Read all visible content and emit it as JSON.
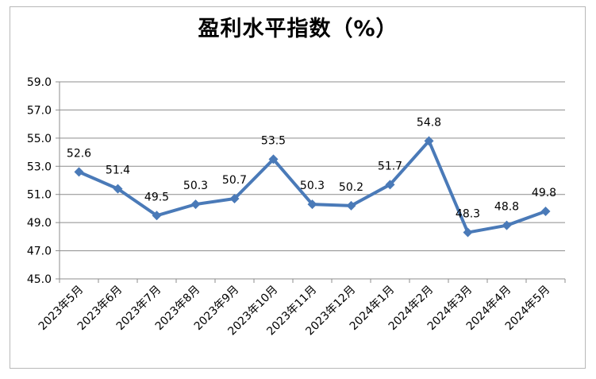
{
  "chart_data": {
    "type": "line",
    "title": "盈利水平指数（%）",
    "xlabel": "",
    "ylabel": "",
    "categories": [
      "2023年5月",
      "2023年6月",
      "2023年7月",
      "2023年8月",
      "2023年9月",
      "2023年10月",
      "2023年11月",
      "2023年12月",
      "2024年1月",
      "2024年2月",
      "2024年3月",
      "2024年4月",
      "2024年5月"
    ],
    "series": [
      {
        "values": [
          52.6,
          51.4,
          49.5,
          50.3,
          50.7,
          53.5,
          50.3,
          50.2,
          51.7,
          54.8,
          48.3,
          48.8,
          49.8
        ]
      }
    ],
    "data_labels": [
      "52.6",
      "51.4",
      "49.5",
      "50.3",
      "50.7",
      "53.5",
      "50.3",
      "50.2",
      "51.7",
      "54.8",
      "48.3",
      "48.8",
      "49.8"
    ],
    "ylim": [
      45.0,
      59.0
    ],
    "yticks": [
      "45.0",
      "47.0",
      "49.0",
      "51.0",
      "53.0",
      "55.0",
      "57.0",
      "59.0"
    ],
    "grid": true,
    "legend": "none",
    "line_color": "#4a7ab8",
    "marker": "diamond"
  }
}
